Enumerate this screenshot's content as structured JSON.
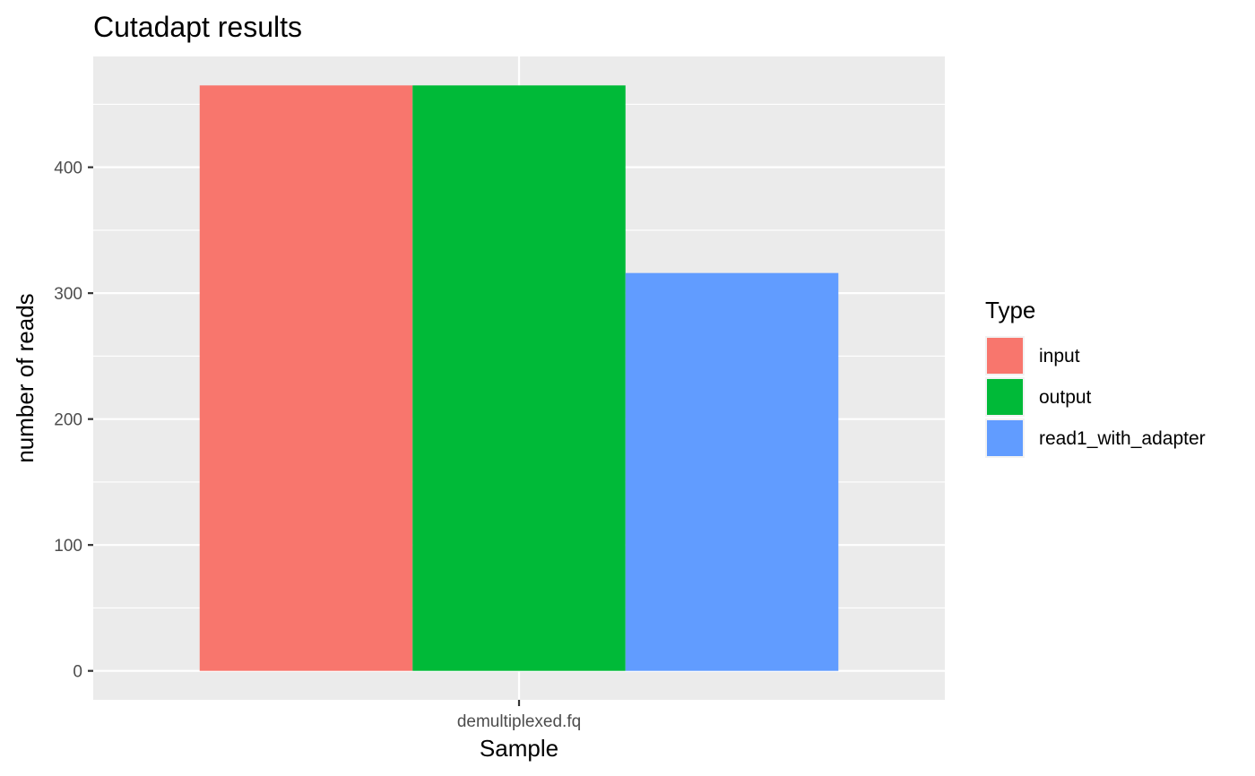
{
  "chart_data": {
    "type": "bar",
    "title": "Cutadapt results",
    "xlabel": "Sample",
    "ylabel": "number of reads",
    "categories": [
      "demultiplexed.fq"
    ],
    "series": [
      {
        "name": "input",
        "values": [
          465
        ],
        "color": "#F8766D"
      },
      {
        "name": "output",
        "values": [
          465
        ],
        "color": "#00BA38"
      },
      {
        "name": "read1_with_adapter",
        "values": [
          316
        ],
        "color": "#619CFF"
      }
    ],
    "ylim": [
      -23,
      488
    ],
    "yticks": [
      0,
      100,
      200,
      300,
      400
    ],
    "grid": true,
    "legend": {
      "title": "Type",
      "position": "right"
    },
    "panel_background": "#EBEBEB"
  }
}
